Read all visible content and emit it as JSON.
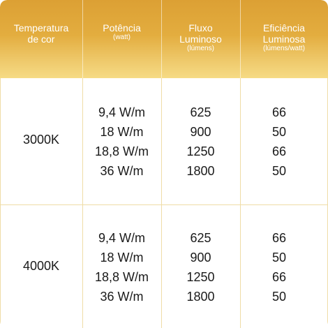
{
  "headers": [
    {
      "title": "Temperatura de cor",
      "unit": ""
    },
    {
      "title": "Potência",
      "unit": "(watt)"
    },
    {
      "title": "Fluxo Luminoso",
      "unit": "(lúmens)"
    },
    {
      "title": "Eficiência Luminosa",
      "unit": "(lúmens/watt)"
    }
  ],
  "groups": [
    {
      "temperature": "3000K",
      "power": [
        "9,4 W/m",
        "18 W/m",
        "18,8 W/m",
        "36 W/m"
      ],
      "flux": [
        "625",
        "900",
        "1250",
        "1800"
      ],
      "efficiency": [
        "66",
        "50",
        "66",
        "50"
      ]
    },
    {
      "temperature": "4000K",
      "power": [
        "9,4 W/m",
        "18 W/m",
        "18,8 W/m",
        "36 W/m"
      ],
      "flux": [
        "625",
        "900",
        "1250",
        "1800"
      ],
      "efficiency": [
        "66",
        "50",
        "66",
        "50"
      ]
    }
  ]
}
